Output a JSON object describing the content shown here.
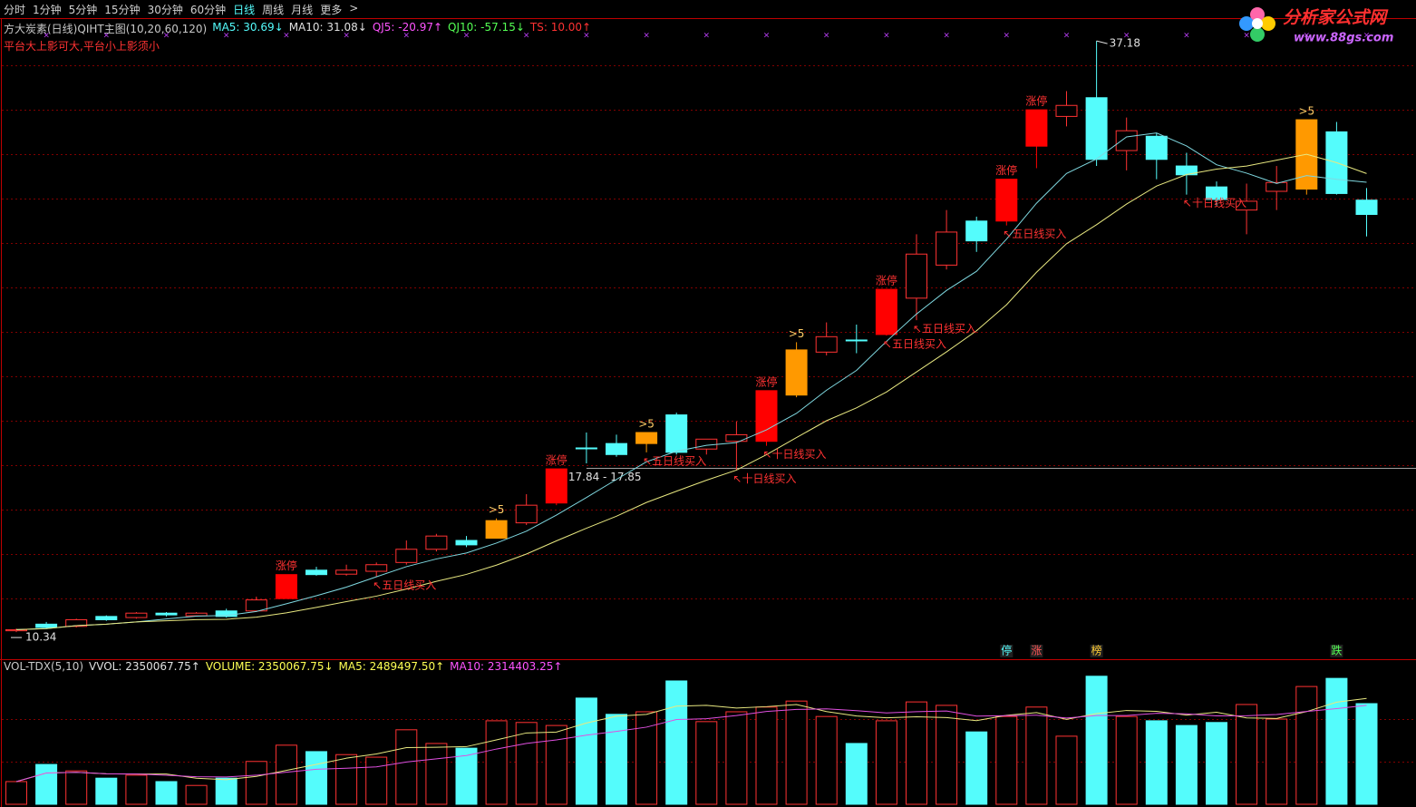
{
  "toolbar": {
    "tabs": [
      "分时",
      "1分钟",
      "5分钟",
      "15分钟",
      "30分钟",
      "60分钟",
      "日线",
      "周线",
      "月线",
      "更多",
      ">"
    ],
    "active": 6
  },
  "logo": {
    "name": "分析家公式网",
    "url": "www.88gs.com"
  },
  "chart_data": [
    {
      "type": "candlestick",
      "title": "方大炭素(日线)",
      "subtitle": "QIHT主图(10,20,60,120)",
      "legend": [
        {
          "text": "MA5: 30.69↓",
          "color": "#54fcfc"
        },
        {
          "text": "MA10: 31.08↓",
          "color": "#e0e0e0"
        },
        {
          "text": "QJ5: -20.97↑",
          "color": "#ff54ff"
        },
        {
          "text": "QJ10: -57.15↓",
          "color": "#54ff54"
        },
        {
          "text": "TS: 10.00↑",
          "color": "#ff3232"
        }
      ],
      "note": "平台大上影可大,平台小上影须小",
      "open": [
        10.4,
        10.7,
        10.6,
        11.05,
        11.0,
        11.2,
        11.08,
        11.3,
        11.3,
        11.86,
        13.15,
        12.97,
        13.1,
        13.5,
        14.1,
        14.5,
        14.6,
        15.3,
        16.2,
        18.7,
        18.9,
        18.9,
        20.2,
        18.65,
        19.0,
        19.0,
        21.1,
        23.05,
        23.6,
        23.85,
        25.5,
        27.0,
        29.0,
        29.0,
        32.4,
        33.75,
        34.6,
        32.2,
        32.85,
        31.5,
        30.55,
        29.5,
        30.35,
        30.45,
        33.05,
        29.95
      ],
      "high": [
        10.5,
        10.8,
        10.95,
        11.1,
        11.25,
        11.25,
        11.25,
        11.4,
        11.95,
        12.95,
        13.3,
        13.4,
        13.5,
        14.5,
        14.8,
        14.7,
        15.5,
        16.6,
        17.75,
        19.4,
        19.3,
        19.4,
        20.3,
        19.1,
        19.9,
        21.3,
        23.5,
        24.4,
        24.3,
        25.9,
        28.4,
        29.5,
        29.2,
        30.9,
        34.05,
        34.9,
        37.18,
        33.7,
        33.0,
        32.1,
        30.8,
        30.7,
        31.5,
        33.6,
        33.5,
        30.5
      ],
      "low": [
        10.34,
        10.5,
        10.55,
        10.85,
        10.95,
        11.05,
        11.05,
        11.0,
        11.25,
        11.86,
        12.9,
        12.9,
        12.85,
        13.4,
        14.0,
        14.2,
        14.6,
        15.2,
        16.1,
        18.0,
        18.3,
        18.5,
        18.4,
        18.4,
        17.7,
        18.8,
        21.0,
        22.9,
        23.0,
        23.8,
        24.5,
        26.8,
        27.6,
        28.8,
        31.4,
        33.3,
        31.5,
        31.3,
        30.9,
        30.2,
        29.7,
        28.4,
        29.5,
        30.2,
        30.2,
        28.3
      ],
      "close": [
        10.45,
        10.55,
        10.9,
        10.9,
        11.2,
        11.12,
        11.2,
        11.05,
        11.8,
        12.95,
        12.95,
        13.15,
        13.4,
        14.1,
        14.7,
        14.3,
        15.4,
        16.1,
        17.75,
        18.7,
        18.4,
        19.4,
        18.5,
        19.1,
        19.3,
        21.3,
        23.15,
        23.75,
        23.6,
        25.9,
        27.5,
        28.5,
        28.1,
        30.9,
        34.05,
        34.25,
        31.8,
        33.1,
        31.8,
        31.1,
        29.98,
        29.9,
        30.75,
        33.6,
        30.25,
        29.3
      ],
      "up_color": "#ff3232",
      "down_color": "#54fcfc",
      "ylim": [
        9.15,
        38.13
      ],
      "gridlines": [
        11.86,
        13.88,
        15.9,
        17.92,
        19.93,
        21.95,
        23.97,
        25.98,
        28.0,
        30.02,
        32.04,
        34.05,
        36.07
      ],
      "ma_periods": [
        5,
        10
      ],
      "ma_colors": [
        "#7fd8e0",
        "#e8e880"
      ],
      "annotations": [
        {
          "index": 9,
          "text": "涨停",
          "position": "above",
          "color": "#ff3232",
          "candle_color": "#ff0000"
        },
        {
          "index": 18,
          "text": "涨停",
          "position": "above",
          "color": "#ff3232",
          "candle_color": "#ff0000"
        },
        {
          "index": 25,
          "text": "涨停",
          "position": "above",
          "color": "#ff3232",
          "candle_color": "#ff0000"
        },
        {
          "index": 29,
          "text": "涨停",
          "position": "above",
          "color": "#ff3232",
          "candle_color": "#ff0000"
        },
        {
          "index": 33,
          "text": "涨停",
          "position": "above",
          "color": "#ff3232",
          "candle_color": "#ff0000"
        },
        {
          "index": 34,
          "text": "涨停",
          "position": "above",
          "color": "#ff3232",
          "candle_color": "#ff0000"
        },
        {
          "index": 16,
          "text": ">5",
          "position": "above",
          "color": "#ffcc66",
          "candle_color": "#ff9900"
        },
        {
          "index": 21,
          "text": ">5",
          "position": "above",
          "color": "#ffcc66",
          "candle_color": "#ff9900"
        },
        {
          "index": 26,
          "text": ">5",
          "position": "above",
          "color": "#ffcc66",
          "candle_color": "#ff9900"
        },
        {
          "index": 43,
          "text": ">5",
          "position": "above",
          "color": "#ffcc66",
          "candle_color": "#ff9900"
        },
        {
          "index": 12,
          "text": "↖五日线买入",
          "position": "below",
          "color": "#ff3232"
        },
        {
          "index": 21,
          "text": "↖五日线买入",
          "position": "below",
          "color": "#ff3232"
        },
        {
          "index": 29,
          "text": "↖五日线买入",
          "position": "below",
          "color": "#ff3232"
        },
        {
          "index": 30,
          "text": "↖五日线买入",
          "position": "below",
          "color": "#ff3232"
        },
        {
          "index": 33,
          "text": "↖五日线买入",
          "position": "below",
          "color": "#ff3232"
        },
        {
          "index": 24,
          "text": "↖十日线买入",
          "position": "below",
          "color": "#ff3232"
        },
        {
          "index": 25,
          "text": "↖十日线买入",
          "position": "below",
          "color": "#ff3232"
        },
        {
          "index": 39,
          "text": "↖十日线买入",
          "position": "below",
          "color": "#ff3232"
        }
      ],
      "ref_line": {
        "value": 17.78,
        "label": "17.84 - 17.85",
        "index": 19
      },
      "max_index": 36,
      "min_index": 0,
      "badges": [
        {
          "index": 33,
          "text": "停",
          "color": "#54fcfc"
        },
        {
          "index": 34,
          "text": "涨",
          "color": "#ff5454"
        },
        {
          "index": 36,
          "text": "榜",
          "color": "#ffcc33"
        },
        {
          "index": 44,
          "text": "跌",
          "color": "#54ff54"
        }
      ]
    },
    {
      "type": "bar",
      "title": "VOL-TDX(5,10)",
      "legend": [
        {
          "text": "VVOL: 2350067.75↑",
          "color": "#e0e0e0"
        },
        {
          "text": "VOLUME: 2350067.75↓",
          "color": "#ffff54"
        },
        {
          "text": "MA5: 2489497.50↑",
          "color": "#ffff54"
        },
        {
          "text": "MA10: 2314403.25↑",
          "color": "#ff54ff"
        }
      ],
      "values": [
        530000,
        930000,
        780000,
        610000,
        680000,
        530000,
        440000,
        610000,
        1000000,
        1380000,
        1230000,
        1160000,
        1100000,
        1740000,
        1420000,
        1310000,
        1950000,
        1910000,
        1840000,
        2480000,
        2100000,
        2160000,
        2880000,
        1930000,
        2160000,
        2270000,
        2410000,
        2050000,
        1420000,
        1950000,
        2390000,
        2310000,
        1690000,
        2050000,
        2270000,
        1590000,
        2990000,
        2050000,
        1950000,
        1840000,
        1910000,
        2330000,
        1990000,
        2750000,
        2940000,
        2350067.75
      ],
      "ylim": [
        0,
        3070000
      ],
      "gridlines": [
        1000000,
        2000000
      ],
      "ma_periods": [
        5,
        10
      ],
      "ma_colors": [
        "#e8e880",
        "#e050e0"
      ]
    }
  ]
}
